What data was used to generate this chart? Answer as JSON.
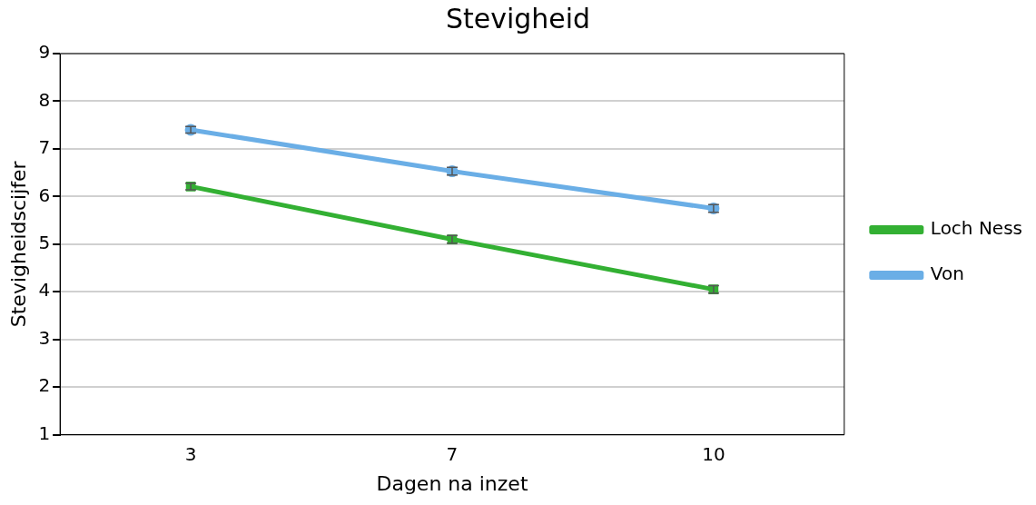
{
  "chart_data": {
    "type": "line",
    "title": "Stevigheid",
    "xlabel": "Dagen na inzet",
    "ylabel": "Stevigheidscijfer",
    "categories": [
      "3",
      "7",
      "10"
    ],
    "series": [
      {
        "name": "Loch Ness",
        "color": "#33b033",
        "values": [
          6.21,
          5.1,
          4.05
        ],
        "errors": [
          0.07,
          0.08,
          0.08
        ],
        "marker": "square"
      },
      {
        "name": "Von",
        "color": "#6aaee6",
        "values": [
          7.4,
          6.53,
          5.75
        ],
        "errors": [
          0.07,
          0.08,
          0.08
        ],
        "marker": "circle"
      }
    ],
    "ylim": [
      1,
      9
    ],
    "yticks": [
      1,
      2,
      3,
      4,
      5,
      6,
      7,
      8,
      9
    ],
    "grid": "y",
    "legend": "right",
    "line_style": "solid"
  }
}
